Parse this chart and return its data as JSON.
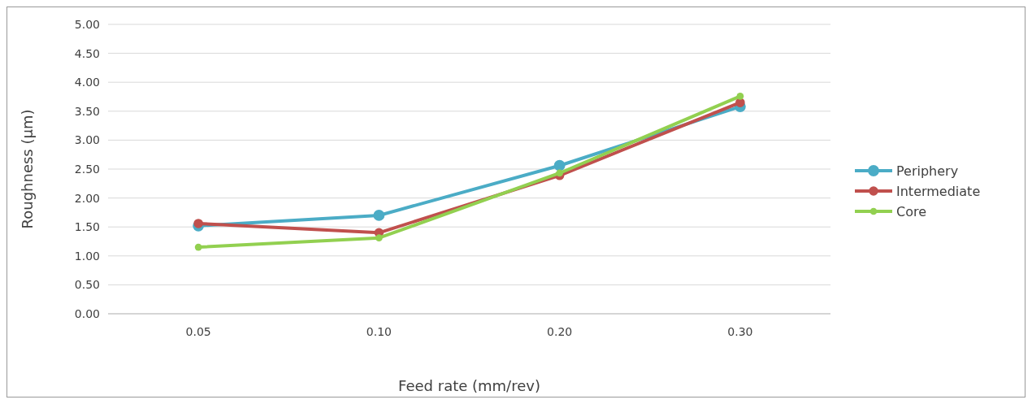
{
  "chart_data": {
    "type": "line",
    "xlabel": "Feed rate (mm/rev)",
    "ylabel": "Roughness (µm)",
    "categories": [
      "0.05",
      "0.10",
      "0.20",
      "0.30"
    ],
    "series": [
      {
        "name": "Periphery",
        "color": "#4bacc6",
        "values": [
          1.52,
          1.7,
          2.56,
          3.58
        ]
      },
      {
        "name": "Intermediate",
        "color": "#c0504d",
        "values": [
          1.56,
          1.4,
          2.39,
          3.65
        ]
      },
      {
        "name": "Core",
        "color": "#92d050",
        "values": [
          1.15,
          1.31,
          2.43,
          3.76
        ]
      }
    ],
    "ylim": [
      0,
      5
    ],
    "yticks": [
      {
        "value": 0,
        "label": "0.00"
      },
      {
        "value": 0.5,
        "label": "0.50"
      },
      {
        "value": 1,
        "label": "1.00"
      },
      {
        "value": 1.5,
        "label": "1.50"
      },
      {
        "value": 2,
        "label": "2.00"
      },
      {
        "value": 2.5,
        "label": "2.50"
      },
      {
        "value": 3,
        "label": "3.00"
      },
      {
        "value": 3.5,
        "label": "3.50"
      },
      {
        "value": 4,
        "label": "4.00"
      },
      {
        "value": 4.5,
        "label": "4.50"
      },
      {
        "value": 5,
        "label": "5.00"
      }
    ],
    "grid": "y",
    "legend": "right",
    "marker": "circle"
  }
}
